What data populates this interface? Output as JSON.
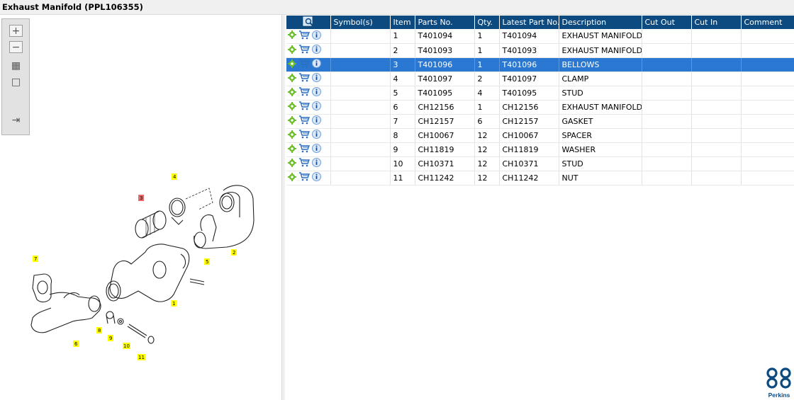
{
  "window": {
    "title": "Exhaust Manifold (PPL106355)"
  },
  "viewer_toolbar": {
    "buttons": [
      {
        "name": "zoom-in",
        "glyph": "+"
      },
      {
        "name": "zoom-out",
        "glyph": "−"
      },
      {
        "name": "fit-all",
        "glyph": "▦"
      },
      {
        "name": "fit-page",
        "glyph": "□"
      },
      {
        "name": "export",
        "glyph": "⇥"
      }
    ]
  },
  "drawing": {
    "callouts": [
      "1",
      "2",
      "3",
      "4",
      "5",
      "6",
      "7",
      "8",
      "9",
      "10",
      "11"
    ],
    "highlighted_callout": "3"
  },
  "table": {
    "columns": [
      "Symbol(s)",
      "Item",
      "Parts No.",
      "Qty.",
      "Latest Part No.",
      "Description",
      "Cut Out",
      "Cut In",
      "Comment"
    ],
    "rows": [
      {
        "item": "1",
        "part_no": "T401094",
        "qty": "1",
        "latest": "T401094",
        "desc": "EXHAUST MANIFOLD",
        "cut_out": "",
        "cut_in": "",
        "comment": ""
      },
      {
        "item": "2",
        "part_no": "T401093",
        "qty": "1",
        "latest": "T401093",
        "desc": "EXHAUST MANIFOLD",
        "cut_out": "",
        "cut_in": "",
        "comment": ""
      },
      {
        "item": "3",
        "part_no": "T401096",
        "qty": "1",
        "latest": "T401096",
        "desc": "BELLOWS",
        "cut_out": "",
        "cut_in": "",
        "comment": "",
        "selected": true
      },
      {
        "item": "4",
        "part_no": "T401097",
        "qty": "2",
        "latest": "T401097",
        "desc": "CLAMP",
        "cut_out": "",
        "cut_in": "",
        "comment": ""
      },
      {
        "item": "5",
        "part_no": "T401095",
        "qty": "4",
        "latest": "T401095",
        "desc": "STUD",
        "cut_out": "",
        "cut_in": "",
        "comment": ""
      },
      {
        "item": "6",
        "part_no": "CH12156",
        "qty": "1",
        "latest": "CH12156",
        "desc": "EXHAUST MANIFOLD",
        "cut_out": "",
        "cut_in": "",
        "comment": ""
      },
      {
        "item": "7",
        "part_no": "CH12157",
        "qty": "6",
        "latest": "CH12157",
        "desc": "GASKET",
        "cut_out": "",
        "cut_in": "",
        "comment": ""
      },
      {
        "item": "8",
        "part_no": "CH10067",
        "qty": "12",
        "latest": "CH10067",
        "desc": "SPACER",
        "cut_out": "",
        "cut_in": "",
        "comment": ""
      },
      {
        "item": "9",
        "part_no": "CH11819",
        "qty": "12",
        "latest": "CH11819",
        "desc": "WASHER",
        "cut_out": "",
        "cut_in": "",
        "comment": ""
      },
      {
        "item": "10",
        "part_no": "CH10371",
        "qty": "12",
        "latest": "CH10371",
        "desc": "STUD",
        "cut_out": "",
        "cut_in": "",
        "comment": ""
      },
      {
        "item": "11",
        "part_no": "CH11242",
        "qty": "12",
        "latest": "CH11242",
        "desc": "NUT",
        "cut_out": "",
        "cut_in": "",
        "comment": ""
      }
    ],
    "row_icons": [
      "gear-icon",
      "cart-icon",
      "info-icon"
    ]
  },
  "brand": {
    "name": "Perkins",
    "color": "#0d4a80"
  },
  "colors": {
    "header": "#0d4a80",
    "selected_row": "#2b78d2",
    "callout": "#ffff00",
    "callout_selected": "#e86a6a"
  }
}
